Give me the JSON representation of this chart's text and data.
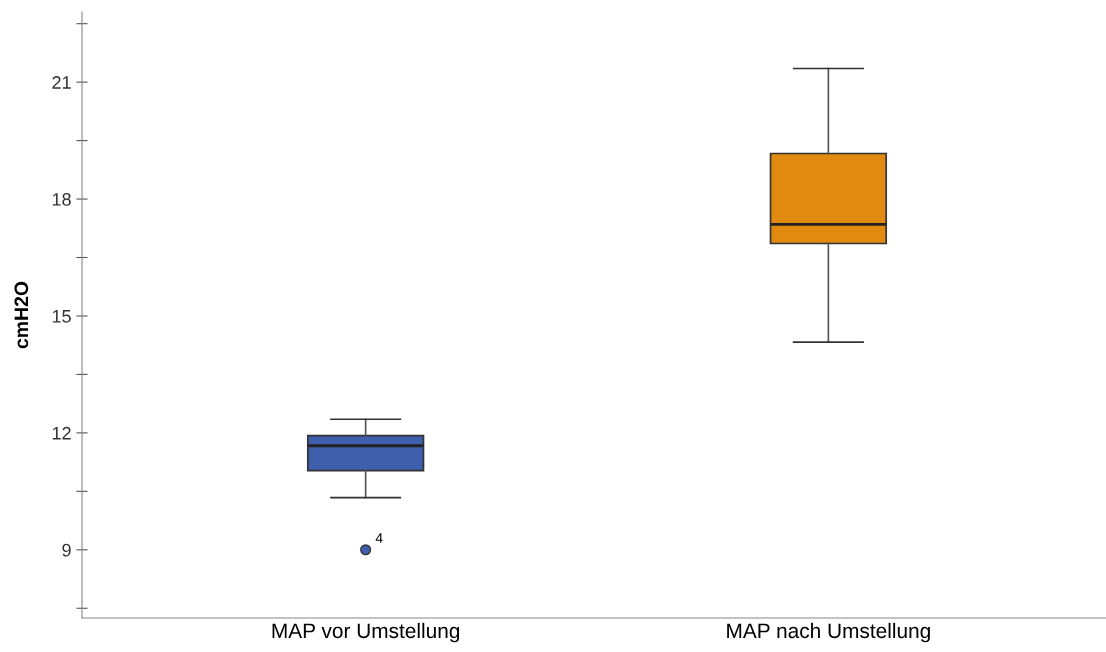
{
  "chart_data": {
    "type": "box",
    "ylabel": "cmH2O",
    "categories": [
      "MAP vor Umstellung",
      "MAP nach Umstellung"
    ],
    "colors": [
      "#3f5fad",
      "#e08a10"
    ],
    "boxes": [
      {
        "low": 10.34,
        "q1": 11.03,
        "median": 11.67,
        "q3": 11.93,
        "high": 12.35,
        "outliers": [
          9.0
        ]
      },
      {
        "low": 14.33,
        "q1": 16.86,
        "median": 17.35,
        "q3": 19.17,
        "high": 21.35
      }
    ],
    "annotations": [
      "4"
    ],
    "ylim": [
      7.25,
      22.8
    ],
    "yticks": [
      {
        "value": 7.5,
        "label": null
      },
      9,
      {
        "value": 10.5,
        "label": null
      },
      12,
      {
        "value": 13.5,
        "label": null
      },
      15,
      {
        "value": 16.5,
        "label": null
      },
      18,
      {
        "value": 19.5,
        "label": null
      },
      21,
      {
        "value": 22.5,
        "label": null
      }
    ],
    "grid": false,
    "legend": false
  }
}
